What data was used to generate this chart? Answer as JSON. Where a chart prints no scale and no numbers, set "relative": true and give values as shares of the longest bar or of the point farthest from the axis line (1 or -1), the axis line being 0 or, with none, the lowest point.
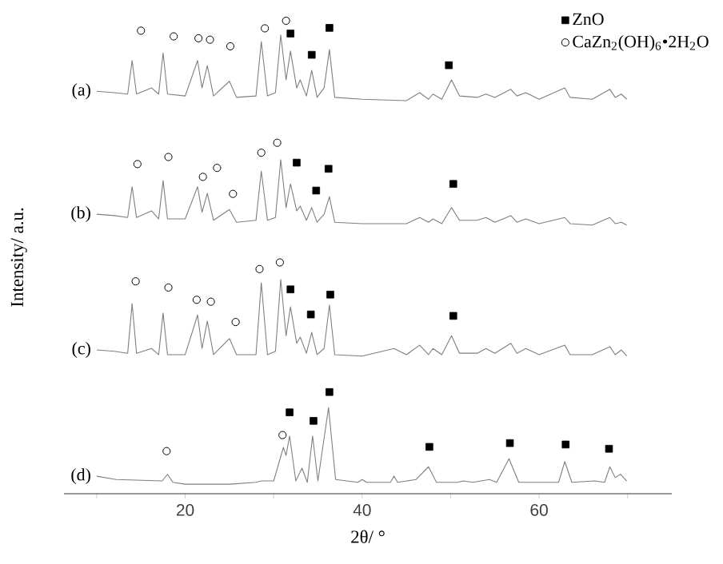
{
  "chart_data": {
    "type": "line",
    "relative": true,
    "xlabel": "2θ/ °",
    "ylabel": "Intensity/ a.u.",
    "xlim": [
      6.3,
      75
    ],
    "xticks": [
      {
        "value": 10,
        "label": null
      },
      20,
      {
        "value": 30,
        "label": null
      },
      40,
      {
        "value": 50,
        "label": null
      },
      60,
      {
        "value": 70,
        "label": null
      }
    ],
    "legend": "top right",
    "series": [
      {
        "name": "(a)",
        "color": "#7f7f7f",
        "marker": "none",
        "x": [
          10.0,
          12,
          13.5,
          14.0,
          14.5,
          16.2,
          17.0,
          17.5,
          18,
          20,
          21.4,
          21.9,
          22.5,
          23.2,
          25.0,
          25.8,
          28,
          28.6,
          29.3,
          30.2,
          30.8,
          31.4,
          31.9,
          32.6,
          33.0,
          33.7,
          34.3,
          34.9,
          35.7,
          36.3,
          36.9,
          40,
          45,
          46.5,
          47.5,
          48,
          49,
          50.1,
          51,
          53,
          54,
          55,
          56.8,
          57.5,
          58.5,
          60,
          62.9,
          63.5,
          66,
          68.0,
          68.6,
          69.3,
          69.9
        ],
        "values": [
          0.851,
          0.848,
          0.845,
          0.916,
          0.845,
          0.858,
          0.845,
          0.932,
          0.845,
          0.841,
          0.916,
          0.858,
          0.905,
          0.841,
          0.872,
          0.838,
          0.841,
          0.956,
          0.841,
          0.848,
          0.97,
          0.875,
          0.936,
          0.858,
          0.875,
          0.841,
          0.895,
          0.838,
          0.858,
          0.939,
          0.838,
          0.834,
          0.831,
          0.848,
          0.834,
          0.845,
          0.834,
          0.875,
          0.841,
          0.838,
          0.845,
          0.838,
          0.855,
          0.841,
          0.848,
          0.834,
          0.858,
          0.838,
          0.834,
          0.855,
          0.838,
          0.845,
          0.834
        ]
      },
      {
        "name": "(b)",
        "color": "#7f7f7f",
        "marker": "none",
        "x": [
          10.0,
          12,
          13.5,
          14.0,
          14.5,
          16.2,
          17.0,
          17.5,
          18,
          20,
          21.4,
          21.9,
          22.5,
          23.2,
          25.0,
          25.8,
          28,
          28.6,
          29.3,
          30.2,
          30.8,
          31.4,
          31.9,
          32.6,
          33.0,
          33.7,
          34.3,
          34.9,
          35.7,
          36.3,
          36.9,
          40,
          45,
          46.5,
          47.5,
          48,
          49,
          50.1,
          51,
          53,
          54,
          55,
          56.8,
          57.5,
          58.5,
          60,
          62.9,
          63.5,
          66,
          68.0,
          68.6,
          69.3,
          69.9
        ],
        "values": [
          0.591,
          0.588,
          0.584,
          0.649,
          0.584,
          0.598,
          0.581,
          0.662,
          0.581,
          0.581,
          0.649,
          0.595,
          0.635,
          0.578,
          0.601,
          0.574,
          0.578,
          0.682,
          0.578,
          0.584,
          0.706,
          0.605,
          0.655,
          0.598,
          0.608,
          0.578,
          0.605,
          0.574,
          0.591,
          0.628,
          0.574,
          0.571,
          0.571,
          0.584,
          0.574,
          0.581,
          0.571,
          0.605,
          0.578,
          0.578,
          0.584,
          0.574,
          0.588,
          0.574,
          0.581,
          0.571,
          0.584,
          0.571,
          0.568,
          0.584,
          0.571,
          0.574,
          0.568
        ]
      },
      {
        "name": "(c)",
        "color": "#7f7f7f",
        "marker": "none",
        "x": [
          10.0,
          12,
          13.5,
          14.0,
          14.5,
          16.2,
          17.0,
          17.5,
          18,
          20,
          21.4,
          21.9,
          22.5,
          23.2,
          25.0,
          25.8,
          28,
          28.6,
          29.3,
          30.2,
          30.8,
          31.4,
          31.9,
          32.6,
          33.0,
          33.7,
          34.3,
          34.9,
          35.7,
          36.3,
          36.9,
          40,
          43.6,
          45,
          46.5,
          47.5,
          48,
          49,
          50.1,
          51,
          53,
          54,
          55,
          56.8,
          57.5,
          58.5,
          60,
          62.9,
          63.5,
          66,
          68.0,
          68.6,
          69.3,
          69.9
        ],
        "values": [
          0.304,
          0.301,
          0.297,
          0.402,
          0.297,
          0.307,
          0.294,
          0.382,
          0.294,
          0.294,
          0.378,
          0.307,
          0.365,
          0.294,
          0.328,
          0.294,
          0.294,
          0.446,
          0.294,
          0.301,
          0.453,
          0.334,
          0.395,
          0.318,
          0.331,
          0.297,
          0.341,
          0.294,
          0.307,
          0.399,
          0.294,
          0.291,
          0.307,
          0.294,
          0.314,
          0.294,
          0.307,
          0.294,
          0.334,
          0.297,
          0.297,
          0.307,
          0.297,
          0.318,
          0.297,
          0.307,
          0.294,
          0.314,
          0.294,
          0.294,
          0.311,
          0.294,
          0.304,
          0.291
        ]
      },
      {
        "name": "(d)",
        "color": "#7f7f7f",
        "marker": "none",
        "x": [
          10.0,
          12.2,
          17.4,
          18.0,
          18.6,
          20,
          25,
          28,
          28.6,
          30.0,
          31.1,
          31.4,
          31.8,
          32.5,
          33.2,
          33.8,
          34.4,
          35.0,
          36.2,
          37.0,
          39.5,
          40.0,
          40.5,
          43.2,
          43.6,
          44.0,
          46.1,
          47.5,
          48.4,
          50.8,
          51.4,
          52.5,
          54.4,
          55.2,
          56.6,
          57.7,
          62.2,
          62.9,
          63.7,
          66.3,
          67.4,
          68.0,
          68.6,
          69.2,
          69.9
        ],
        "values": [
          0.037,
          0.03,
          0.027,
          0.041,
          0.024,
          0.02,
          0.02,
          0.024,
          0.027,
          0.027,
          0.098,
          0.081,
          0.122,
          0.027,
          0.054,
          0.024,
          0.122,
          0.027,
          0.182,
          0.03,
          0.024,
          0.03,
          0.024,
          0.024,
          0.037,
          0.024,
          0.03,
          0.057,
          0.024,
          0.024,
          0.027,
          0.024,
          0.03,
          0.024,
          0.074,
          0.024,
          0.024,
          0.068,
          0.024,
          0.027,
          0.024,
          0.057,
          0.034,
          0.041,
          0.027
        ]
      },
      {
        "name": "ZnO",
        "type": "scatter",
        "color": "#000000",
        "marker": "square",
        "x": [
          31.9,
          34.3,
          36.3,
          49.8,
          32.6,
          34.8,
          36.2,
          50.3,
          31.9,
          34.2,
          36.4,
          50.3,
          31.8,
          34.5,
          36.3,
          47.6,
          56.7,
          63.0,
          67.9
        ],
        "values": [
          0.973,
          0.928,
          0.985,
          0.906,
          0.7,
          0.641,
          0.687,
          0.655,
          0.432,
          0.379,
          0.421,
          0.376,
          0.172,
          0.154,
          0.215,
          0.099,
          0.107,
          0.104,
          0.095
        ]
      },
      {
        "name": "CaZn$_{2}$(OH)$_{6}$•2H$_{2}$O",
        "type": "scatter",
        "color": "#000000",
        "marker": "circle",
        "x": [
          15.0,
          18.7,
          21.5,
          22.8,
          25.1,
          29.0,
          31.4,
          14.6,
          18.1,
          22.0,
          23.6,
          25.4,
          28.6,
          30.4,
          14.4,
          18.1,
          21.3,
          22.9,
          25.7,
          28.4,
          30.7,
          17.9,
          31.0
        ],
        "values": [
          0.979,
          0.967,
          0.963,
          0.96,
          0.946,
          0.984,
          1.0,
          0.697,
          0.712,
          0.67,
          0.689,
          0.634,
          0.721,
          0.742,
          0.449,
          0.436,
          0.41,
          0.406,
          0.363,
          0.475,
          0.489,
          0.09,
          0.124
        ]
      }
    ]
  }
}
